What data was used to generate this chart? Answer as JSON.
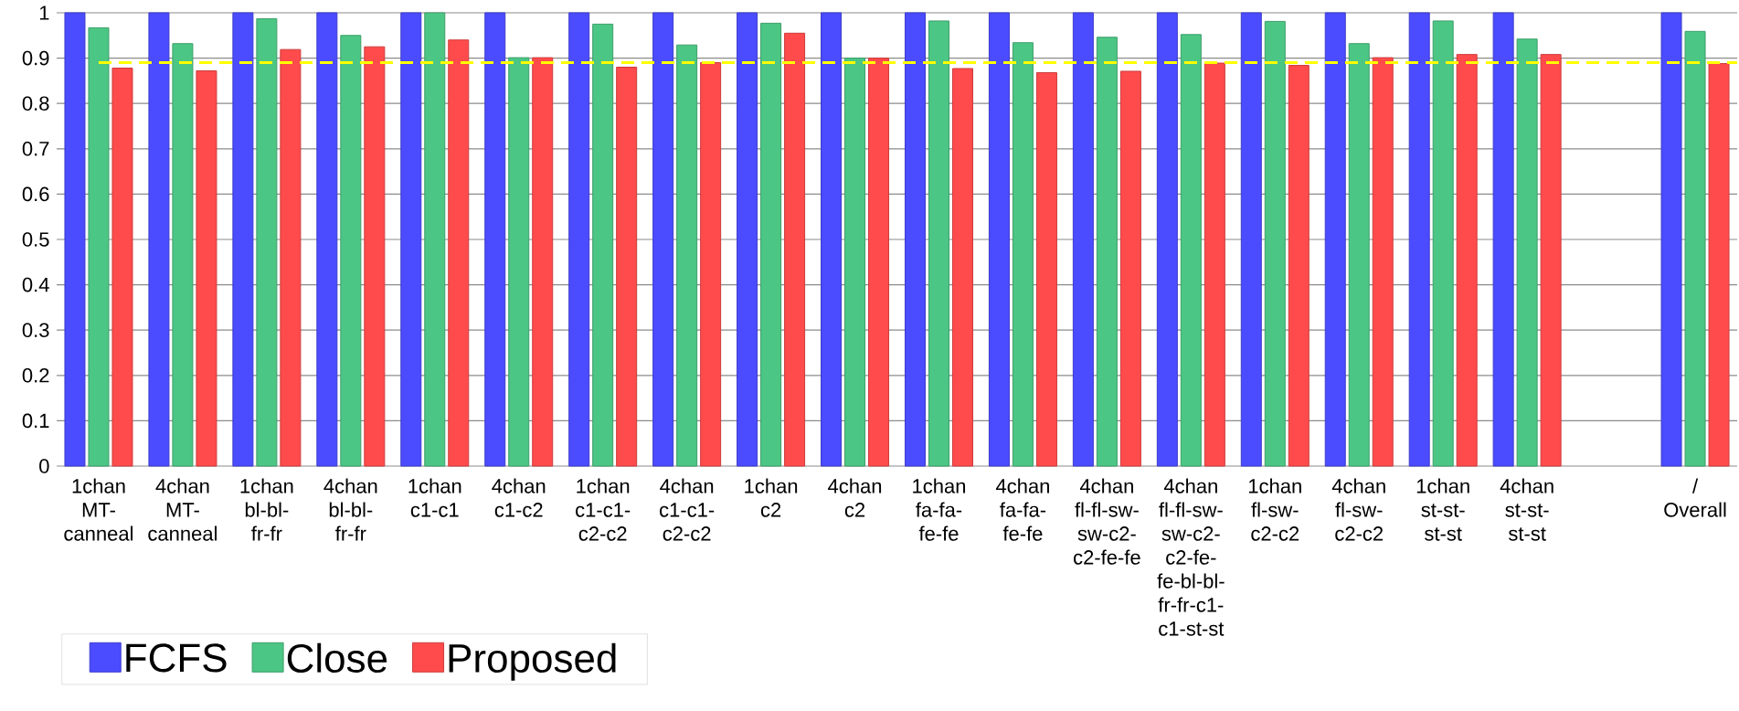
{
  "chart_data": {
    "type": "bar",
    "categories": [
      "1chan MT-canneal",
      "4chan MT-canneal",
      "1chan bl-bl-fr-fr",
      "4chan bl-bl-fr-fr",
      "1chan c1-c1",
      "4chan c1-c2",
      "1chan c1-c1-c2-c2",
      "4chan c1-c1-c2-c2",
      "1chan c2",
      "4chan c2",
      "1chan fa-fa-fe-fe",
      "4chan fa-fa-fe-fe",
      "4chan fl-fl-sw-sw-c2-c2-fe-fe",
      "4chan fl-fl-sw-sw-c2-c2-fe-fe-bl-bl-fr-fr-c1-c1-st-st",
      "1chan fl-sw-c2-c2",
      "4chan fl-sw-c2-c2",
      "1chan st-st-st-st",
      "4chan st-st-st-st",
      null,
      "/ Overall"
    ],
    "series": [
      {
        "name": "FCFS",
        "color": "#4b4bff",
        "values": [
          1,
          1,
          1,
          1,
          1,
          1,
          1,
          1,
          1,
          1,
          1,
          1,
          1,
          1,
          1,
          1,
          1,
          1,
          null,
          1
        ]
      },
      {
        "name": "Close",
        "color": "#4cc684",
        "values": [
          0.967,
          0.932,
          0.987,
          0.95,
          1,
          0.901,
          0.975,
          0.929,
          0.977,
          0.9,
          0.982,
          0.934,
          0.946,
          0.952,
          0.981,
          0.932,
          0.982,
          0.942,
          null,
          0.959
        ]
      },
      {
        "name": "Proposed",
        "color": "#ff4b4b",
        "values": [
          0.878,
          0.872,
          0.919,
          0.925,
          0.94,
          0.901,
          0.88,
          0.89,
          0.955,
          0.9,
          0.877,
          0.868,
          0.871,
          0.889,
          0.884,
          0.901,
          0.908,
          0.908,
          null,
          0.888
        ]
      }
    ],
    "ylim": [
      0,
      1
    ],
    "yticks": [
      0,
      0.1,
      0.2,
      0.3,
      0.4,
      0.5,
      0.6,
      0.7,
      0.8,
      0.9,
      1
    ],
    "ref_lines": [
      {
        "axis": "y",
        "value": 0.89,
        "color": "#ffff00",
        "line_style": "dashed"
      }
    ],
    "grid": "y",
    "legend": "bottom left"
  }
}
